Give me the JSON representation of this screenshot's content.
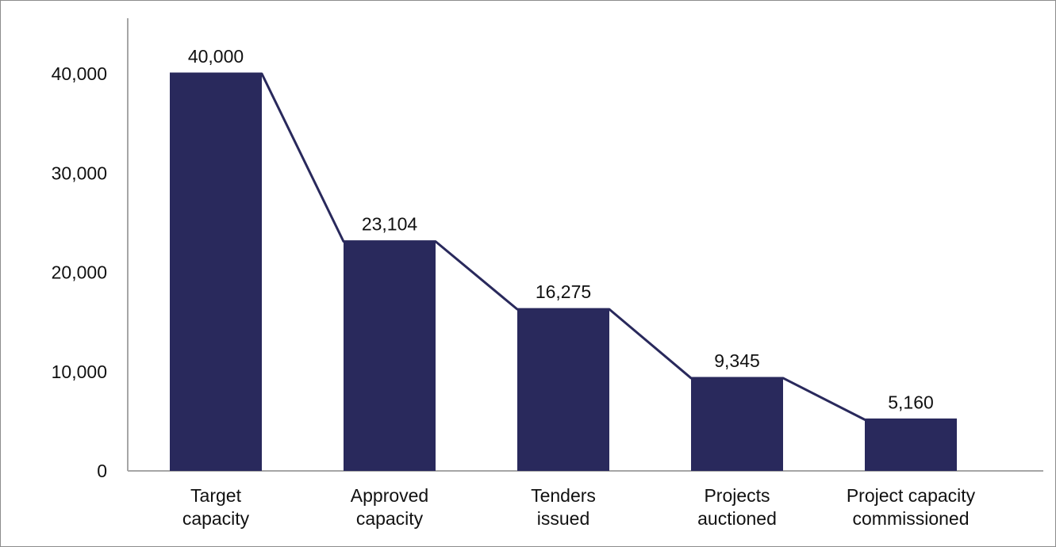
{
  "chart_data": {
    "type": "bar",
    "title": "",
    "xlabel": "",
    "ylabel": "",
    "ylim": [
      0,
      45000
    ],
    "yticks": [
      {
        "value": 0,
        "label": "0"
      },
      {
        "value": 10000,
        "label": "10,000"
      },
      {
        "value": 20000,
        "label": "20,000"
      },
      {
        "value": 30000,
        "label": "30,000"
      },
      {
        "value": 40000,
        "label": "40,000"
      }
    ],
    "categories": [
      [
        "Target",
        "capacity"
      ],
      [
        "Approved",
        "capacity"
      ],
      [
        "Tenders",
        "issued"
      ],
      [
        "Projects",
        "auctioned"
      ],
      [
        "Project capacity",
        "commissioned"
      ]
    ],
    "values": [
      40000,
      23104,
      16275,
      9345,
      5160
    ],
    "data_labels": [
      "40,000",
      "23,104",
      "16,275",
      "9,345",
      "5,160"
    ],
    "grid": false,
    "legend": "none",
    "connector_line": true,
    "colors": {
      "bar": "#29295c",
      "connector": "#29295c",
      "axis": "#a6a6a6",
      "text": "#111111"
    }
  }
}
